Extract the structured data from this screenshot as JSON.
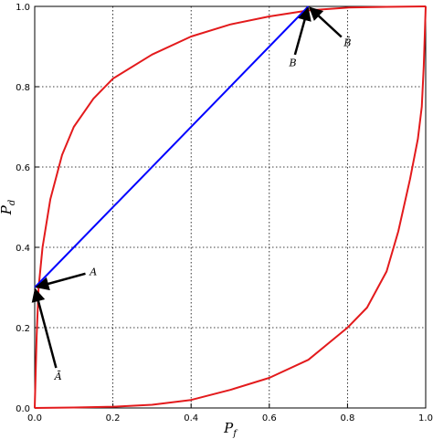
{
  "chart_data": {
    "type": "line",
    "xlabel": "P_f",
    "ylabel": "P_d",
    "xlim": [
      0,
      1
    ],
    "ylim": [
      0,
      1
    ],
    "grid": true,
    "xticks": [
      0.0,
      0.2,
      0.4,
      0.6,
      0.8,
      1.0
    ],
    "yticks": [
      0.0,
      0.2,
      0.4,
      0.6,
      0.8,
      1.0
    ],
    "xtick_labels": [
      "0.0",
      "0.2",
      "0.4",
      "0.6",
      "0.8",
      "1.0"
    ],
    "ytick_labels": [
      "0.0",
      "0.2",
      "0.4",
      "0.6",
      "0.8",
      "1.0"
    ],
    "series": [
      {
        "color": "#e31a1c",
        "points": [
          [
            0.0,
            0.0
          ],
          [
            0.005,
            0.18
          ],
          [
            0.01,
            0.3
          ],
          [
            0.02,
            0.4
          ],
          [
            0.04,
            0.52
          ],
          [
            0.07,
            0.63
          ],
          [
            0.1,
            0.7
          ],
          [
            0.15,
            0.77
          ],
          [
            0.2,
            0.82
          ],
          [
            0.3,
            0.88
          ],
          [
            0.4,
            0.925
          ],
          [
            0.5,
            0.955
          ],
          [
            0.6,
            0.975
          ],
          [
            0.7,
            0.99
          ],
          [
            0.8,
            0.997
          ],
          [
            0.9,
            0.999
          ],
          [
            1.0,
            1.0
          ]
        ]
      },
      {
        "color": "#e31a1c",
        "points": [
          [
            0.0,
            0.0
          ],
          [
            0.1,
            0.001
          ],
          [
            0.2,
            0.003
          ],
          [
            0.3,
            0.008
          ],
          [
            0.4,
            0.02
          ],
          [
            0.5,
            0.045
          ],
          [
            0.6,
            0.075
          ],
          [
            0.7,
            0.12
          ],
          [
            0.8,
            0.2
          ],
          [
            0.85,
            0.25
          ],
          [
            0.9,
            0.34
          ],
          [
            0.93,
            0.44
          ],
          [
            0.96,
            0.57
          ],
          [
            0.98,
            0.67
          ],
          [
            0.99,
            0.75
          ],
          [
            0.995,
            0.85
          ],
          [
            1.0,
            1.0
          ]
        ]
      },
      {
        "color": "#0000ff",
        "points": [
          [
            0.0,
            0.3
          ],
          [
            0.7,
            1.0
          ]
        ]
      }
    ],
    "annotations": [
      {
        "text": "A",
        "point": [
          0.0,
          0.3
        ],
        "text_at": [
          0.15,
          0.34
        ]
      },
      {
        "text": "Ā",
        "point": [
          0.0,
          0.3
        ],
        "text_at": [
          0.06,
          0.08
        ]
      },
      {
        "text": "B",
        "point": [
          0.7,
          1.0
        ],
        "text_at": [
          0.66,
          0.86
        ]
      },
      {
        "text": "B̄",
        "point": [
          0.7,
          1.0
        ],
        "text_at": [
          0.8,
          0.91
        ]
      }
    ]
  }
}
